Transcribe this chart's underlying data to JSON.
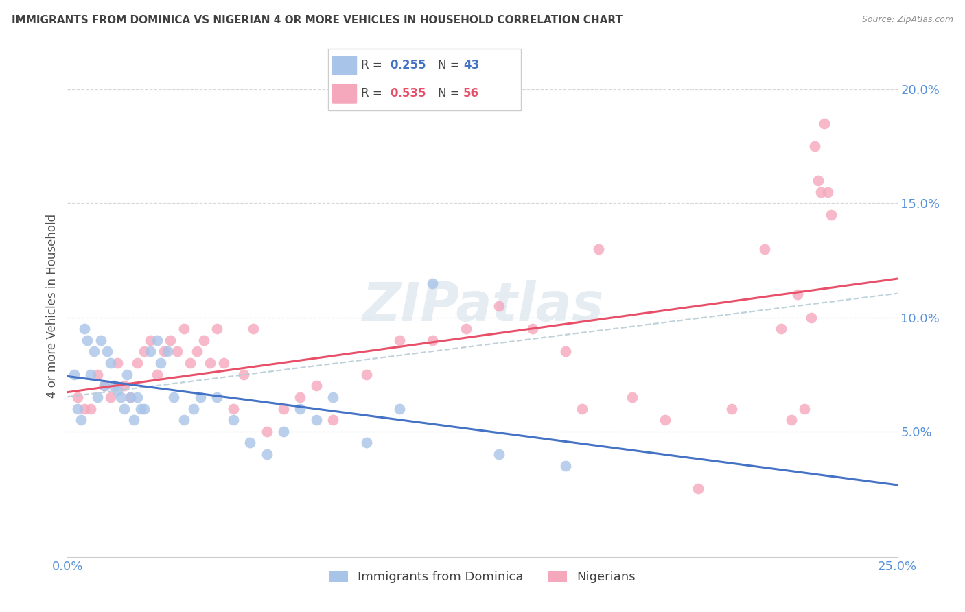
{
  "title": "IMMIGRANTS FROM DOMINICA VS NIGERIAN 4 OR MORE VEHICLES IN HOUSEHOLD CORRELATION CHART",
  "source": "Source: ZipAtlas.com",
  "ylabel": "4 or more Vehicles in Household",
  "xlim": [
    0.0,
    0.25
  ],
  "ylim": [
    -0.005,
    0.215
  ],
  "yticks": [
    0.05,
    0.1,
    0.15,
    0.2
  ],
  "ytick_labels": [
    "5.0%",
    "10.0%",
    "15.0%",
    "20.0%"
  ],
  "xticks": [
    0.0,
    0.05,
    0.1,
    0.15,
    0.2,
    0.25
  ],
  "xtick_labels": [
    "0.0%",
    "",
    "",
    "",
    "",
    "25.0%"
  ],
  "blue_color": "#a8c4e8",
  "pink_color": "#f5a8bc",
  "blue_line_color": "#4472c4",
  "pink_line_color": "#e8506a",
  "dash_line_color": "#b8ccd8",
  "background_color": "#ffffff",
  "grid_color": "#d8d8d8",
  "title_color": "#404040",
  "right_axis_label_color": "#5590d8",
  "watermark_color": "#ccdde8",
  "blue_scatter_x": [
    0.002,
    0.003,
    0.004,
    0.005,
    0.006,
    0.007,
    0.008,
    0.009,
    0.01,
    0.011,
    0.012,
    0.013,
    0.014,
    0.015,
    0.016,
    0.017,
    0.018,
    0.019,
    0.02,
    0.021,
    0.022,
    0.023,
    0.025,
    0.027,
    0.028,
    0.03,
    0.032,
    0.035,
    0.038,
    0.04,
    0.045,
    0.05,
    0.055,
    0.06,
    0.065,
    0.07,
    0.075,
    0.08,
    0.09,
    0.1,
    0.11,
    0.13,
    0.15
  ],
  "blue_scatter_y": [
    0.075,
    0.06,
    0.055,
    0.095,
    0.09,
    0.075,
    0.085,
    0.065,
    0.09,
    0.07,
    0.085,
    0.08,
    0.07,
    0.068,
    0.065,
    0.06,
    0.075,
    0.065,
    0.055,
    0.065,
    0.06,
    0.06,
    0.085,
    0.09,
    0.08,
    0.085,
    0.065,
    0.055,
    0.06,
    0.065,
    0.065,
    0.055,
    0.045,
    0.04,
    0.05,
    0.06,
    0.055,
    0.065,
    0.045,
    0.06,
    0.115,
    0.04,
    0.035
  ],
  "pink_scatter_x": [
    0.003,
    0.005,
    0.007,
    0.009,
    0.011,
    0.013,
    0.015,
    0.017,
    0.019,
    0.021,
    0.023,
    0.025,
    0.027,
    0.029,
    0.031,
    0.033,
    0.035,
    0.037,
    0.039,
    0.041,
    0.043,
    0.045,
    0.047,
    0.05,
    0.053,
    0.056,
    0.06,
    0.065,
    0.07,
    0.075,
    0.08,
    0.09,
    0.1,
    0.11,
    0.12,
    0.13,
    0.14,
    0.15,
    0.155,
    0.16,
    0.17,
    0.18,
    0.19,
    0.2,
    0.21,
    0.215,
    0.218,
    0.22,
    0.222,
    0.224,
    0.225,
    0.226,
    0.227,
    0.228,
    0.229,
    0.23
  ],
  "pink_scatter_y": [
    0.065,
    0.06,
    0.06,
    0.075,
    0.07,
    0.065,
    0.08,
    0.07,
    0.065,
    0.08,
    0.085,
    0.09,
    0.075,
    0.085,
    0.09,
    0.085,
    0.095,
    0.08,
    0.085,
    0.09,
    0.08,
    0.095,
    0.08,
    0.06,
    0.075,
    0.095,
    0.05,
    0.06,
    0.065,
    0.07,
    0.055,
    0.075,
    0.09,
    0.09,
    0.095,
    0.105,
    0.095,
    0.085,
    0.06,
    0.13,
    0.065,
    0.055,
    0.025,
    0.06,
    0.13,
    0.095,
    0.055,
    0.11,
    0.06,
    0.1,
    0.175,
    0.16,
    0.155,
    0.185,
    0.155,
    0.145
  ]
}
